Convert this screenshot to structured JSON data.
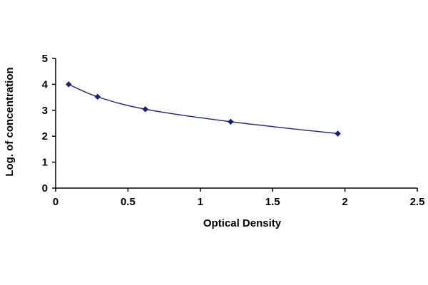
{
  "chart_data": {
    "type": "line",
    "title": "",
    "xlabel": "Optical Density",
    "ylabel": "Log. of concentration",
    "xlim": [
      0,
      2.5
    ],
    "ylim": [
      0,
      5
    ],
    "x_ticks": [
      "0",
      "0.5",
      "1",
      "1.5",
      "2",
      "2.5"
    ],
    "y_ticks": [
      "0",
      "1",
      "2",
      "3",
      "4",
      "5"
    ],
    "grid": false,
    "legend": "none",
    "series": [
      {
        "color": "#1f1f70",
        "marker": "diamond",
        "x": [
          0.09,
          0.29,
          0.62,
          1.21,
          1.95
        ],
        "y": [
          4.0,
          3.52,
          3.04,
          2.56,
          2.1
        ]
      }
    ]
  }
}
